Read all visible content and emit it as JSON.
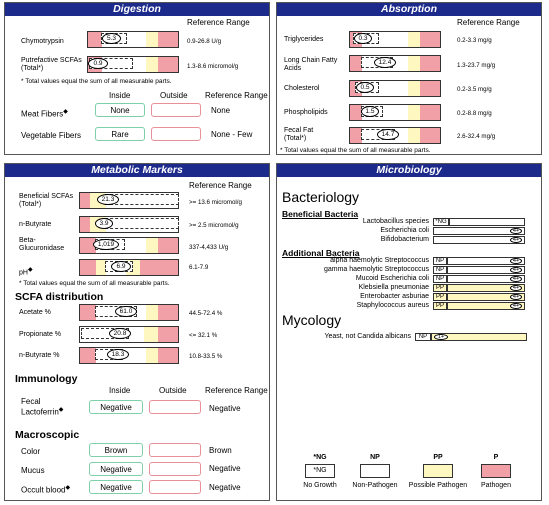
{
  "digestion": {
    "title": "Digestion",
    "ref_header": "Reference Range",
    "rows": [
      {
        "label": "Chymotrypsin",
        "value": "5.3",
        "ref": "0.9-26.8 U/g"
      },
      {
        "label": "Putrefactive SCFAs (Total*)",
        "value": "0.9",
        "ref": "1.3-8.6 micromol/g"
      }
    ],
    "note": "* Total values equal the sum of all measurable parts.",
    "inside_label": "Inside",
    "outside_label": "Outside",
    "ref_header2": "Reference Range",
    "fibers": [
      {
        "label": "Meat Fibers",
        "marker": "◆",
        "inside": "None",
        "ref": "None"
      },
      {
        "label": "Vegetable Fibers",
        "marker": "",
        "inside": "Rare",
        "ref": "None - Few"
      }
    ]
  },
  "absorption": {
    "title": "Absorption",
    "ref_header": "Reference Range",
    "rows": [
      {
        "label": "Triglycerides",
        "value": "0.3",
        "ref": "0.2-3.3 mg/g"
      },
      {
        "label": "Long Chain Fatty Acids",
        "value": "12.4",
        "ref": "1.3-23.7 mg/g"
      },
      {
        "label": "Cholesterol",
        "value": "0.5",
        "ref": "0.2-3.5 mg/g"
      },
      {
        "label": "Phospholipids",
        "value": "1.5",
        "ref": "0.2-8.8 mg/g"
      },
      {
        "label": "Fecal Fat (Total*)",
        "value": "14.7",
        "ref": "2.6-32.4 mg/g"
      }
    ],
    "note": "* Total values equal the sum of all measurable parts."
  },
  "metabolic": {
    "title": "Metabolic Markers",
    "ref_header": "Reference Range",
    "rows": [
      {
        "label": "Beneficial SCFAs (Total*)",
        "value": "21.3",
        "ref": ">= 13.6 micromol/g"
      },
      {
        "label": "n-Butyrate",
        "value": "3.9",
        "ref": ">= 2.5 micromol/g"
      },
      {
        "label": "Beta-Glucuronidase",
        "value": "1,019",
        "ref": "337-4,433 U/g"
      },
      {
        "label": "pH",
        "marker": "◆",
        "value": "6.9",
        "ref": "6.1-7.9"
      }
    ],
    "note": "* Total values equal the sum of all measurable parts.",
    "scfa_title": "SCFA distribution",
    "scfa_rows": [
      {
        "label": "Acetate %",
        "value": "61.0",
        "ref": "44.5-72.4 %"
      },
      {
        "label": "Propionate %",
        "value": "20.8",
        "ref": "<= 32.1 %"
      },
      {
        "label": "n-Butyrate %",
        "value": "18.3",
        "ref": "10.8-33.5 %"
      }
    ],
    "immunology_title": "Immunology",
    "inside_label": "Inside",
    "outside_label": "Outside",
    "ref_header2": "Reference Range",
    "immuno": {
      "label": "Fecal Lactoferrin",
      "marker": "◆",
      "inside": "Negative",
      "ref": "Negative"
    },
    "macro_title": "Macroscopic",
    "macro": [
      {
        "label": "Color",
        "marker": "",
        "inside": "Brown",
        "ref": "Brown"
      },
      {
        "label": "Mucus",
        "marker": "",
        "inside": "Negative",
        "ref": "Negative"
      },
      {
        "label": "Occult blood",
        "marker": "◆",
        "inside": "Negative",
        "ref": "Negative"
      }
    ]
  },
  "micro": {
    "title": "Microbiology",
    "bacteriology": "Bacteriology",
    "beneficial_title": "Beneficial Bacteria",
    "beneficial": [
      {
        "name": "Lactobacillus species",
        "tag": "*NG",
        "level": ""
      },
      {
        "name": "Escherichia coli",
        "tag": "",
        "level": "4+"
      },
      {
        "name": "Bifidobacterium",
        "tag": "",
        "level": "4+"
      }
    ],
    "additional_title": "Additional Bacteria",
    "additional": [
      {
        "name": "alpha haemolytic Streptococcus",
        "tag": "NP",
        "level": "4+"
      },
      {
        "name": "gamma haemolytic Streptococcus",
        "tag": "NP",
        "level": "4+"
      },
      {
        "name": "Mucoid Escherichia coli",
        "tag": "NP",
        "level": "4+"
      },
      {
        "name": "Klebsiella pneumoniae",
        "tag": "PP",
        "level": "4+"
      },
      {
        "name": "Enterobacter asburiae",
        "tag": "PP",
        "level": "4+"
      },
      {
        "name": "Staphylococcus aureus",
        "tag": "PP",
        "level": "4+"
      }
    ],
    "mycology": "Mycology",
    "yeast": {
      "name": "Yeast, not Candida albicans",
      "tag": "NP",
      "level": "1+"
    },
    "legend": [
      {
        "code": "*NG",
        "box": "*NG",
        "label": "No Growth",
        "color": "#ffffff"
      },
      {
        "code": "NP",
        "box": "",
        "label": "Non-Pathogen",
        "color": "#ffffff"
      },
      {
        "code": "PP",
        "box": "",
        "label": "Possible Pathogen",
        "color": "#fff7c0"
      },
      {
        "code": "P",
        "box": "",
        "label": "Pathogen",
        "color": "#f2a0a8"
      }
    ]
  }
}
